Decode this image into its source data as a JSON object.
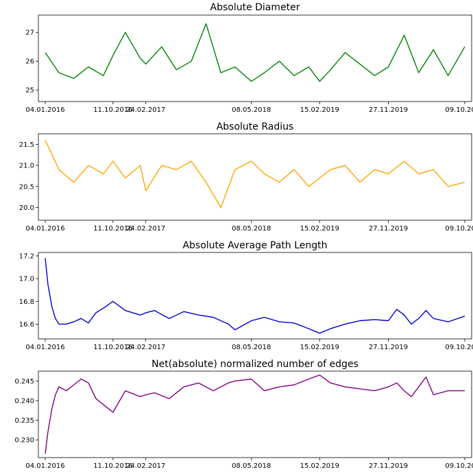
{
  "chart_data": [
    {
      "type": "line",
      "title": "Absolute Diameter",
      "xlabel": "",
      "ylabel": "",
      "x_ticks": [
        "04.01.2016",
        "11.10.2016",
        "24.02.2017",
        "08.05.2018",
        "15.02.2019",
        "27.11.2019",
        "09.10.2020"
      ],
      "xlim": [
        "04.01.2016",
        "09.10.2020"
      ],
      "y_ticks": [
        "25",
        "26",
        "27"
      ],
      "ylim": [
        24.6,
        27.6
      ],
      "grid": false,
      "color": "#008000",
      "series": [
        {
          "x": [
            "04.01.2016",
            "01.03.2016",
            "01.05.2016",
            "01.07.2016",
            "01.09.2016",
            "11.10.2016",
            "01.12.2016",
            "01.02.2017",
            "24.02.2017",
            "01.05.2017",
            "01.07.2017",
            "01.09.2017",
            "01.11.2017",
            "01.01.2018",
            "01.03.2018",
            "08.05.2018",
            "01.07.2018",
            "01.09.2018",
            "01.11.2018",
            "01.01.2019",
            "15.02.2019",
            "01.04.2019",
            "01.06.2019",
            "01.08.2019",
            "01.10.2019",
            "27.11.2019",
            "01.02.2020",
            "01.04.2020",
            "01.06.2020",
            "01.08.2020",
            "09.10.2020"
          ],
          "values": [
            26.3,
            25.6,
            25.4,
            25.8,
            25.5,
            26.2,
            27.0,
            26.1,
            25.9,
            26.5,
            25.7,
            26.0,
            27.3,
            25.6,
            25.8,
            25.3,
            25.6,
            26.0,
            25.5,
            25.8,
            25.3,
            25.7,
            26.3,
            25.9,
            25.5,
            25.8,
            26.9,
            25.6,
            26.4,
            25.5,
            26.5
          ]
        }
      ]
    },
    {
      "type": "line",
      "title": "Absolute Radius",
      "xlabel": "",
      "ylabel": "",
      "x_ticks": [
        "04.01.2016",
        "11.10.2016",
        "24.02.2017",
        "08.05.2018",
        "15.02.2019",
        "27.11.2019",
        "09.10.2020"
      ],
      "xlim": [
        "04.01.2016",
        "09.10.2020"
      ],
      "y_ticks": [
        "20.0",
        "20.5",
        "21.0",
        "21.5"
      ],
      "ylim": [
        19.7,
        21.75
      ],
      "grid": false,
      "color": "#FFA500",
      "series": [
        {
          "x": [
            "04.01.2016",
            "01.03.2016",
            "01.05.2016",
            "01.07.2016",
            "01.09.2016",
            "11.10.2016",
            "01.12.2016",
            "01.02.2017",
            "24.02.2017",
            "01.05.2017",
            "01.07.2017",
            "01.09.2017",
            "01.11.2017",
            "01.01.2018",
            "01.03.2018",
            "08.05.2018",
            "01.07.2018",
            "01.09.2018",
            "01.11.2018",
            "01.01.2019",
            "15.02.2019",
            "01.04.2019",
            "01.06.2019",
            "01.08.2019",
            "01.10.2019",
            "27.11.2019",
            "01.02.2020",
            "01.04.2020",
            "01.06.2020",
            "01.08.2020",
            "09.10.2020"
          ],
          "values": [
            21.6,
            20.9,
            20.6,
            21.0,
            20.8,
            21.1,
            20.7,
            21.0,
            20.4,
            21.0,
            20.9,
            21.1,
            20.6,
            20.0,
            20.9,
            21.1,
            20.8,
            20.6,
            20.9,
            20.5,
            20.7,
            20.9,
            21.0,
            20.6,
            20.9,
            20.8,
            21.1,
            20.8,
            20.9,
            20.5,
            20.6
          ]
        }
      ]
    },
    {
      "type": "line",
      "title": "Absolute Average Path Length",
      "xlabel": "",
      "ylabel": "",
      "x_ticks": [
        "04.01.2016",
        "11.10.2016",
        "24.02.2017",
        "08.05.2018",
        "15.02.2019",
        "27.11.2019",
        "09.10.2020"
      ],
      "xlim": [
        "04.01.2016",
        "09.10.2020"
      ],
      "y_ticks": [
        "16.6",
        "16.8",
        "17.0",
        "17.2"
      ],
      "ylim": [
        16.47,
        17.23
      ],
      "grid": false,
      "color": "#0000CD",
      "series": [
        {
          "x": [
            "04.01.2016",
            "15.01.2016",
            "01.02.2016",
            "15.02.2016",
            "01.03.2016",
            "01.04.2016",
            "01.05.2016",
            "01.06.2016",
            "01.07.2016",
            "01.08.2016",
            "01.09.2016",
            "11.10.2016",
            "01.12.2016",
            "01.02.2017",
            "24.02.2017",
            "01.04.2017",
            "01.06.2017",
            "01.08.2017",
            "01.10.2017",
            "01.12.2017",
            "01.02.2018",
            "01.03.2018",
            "08.05.2018",
            "01.07.2018",
            "01.09.2018",
            "01.11.2018",
            "01.01.2019",
            "15.02.2019",
            "01.04.2019",
            "01.06.2019",
            "01.08.2019",
            "01.10.2019",
            "27.11.2019",
            "01.01.2020",
            "01.02.2020",
            "01.03.2020",
            "01.04.2020",
            "01.05.2020",
            "01.06.2020",
            "01.08.2020",
            "09.10.2020"
          ],
          "values": [
            17.18,
            16.95,
            16.75,
            16.65,
            16.6,
            16.6,
            16.62,
            16.65,
            16.61,
            16.7,
            16.74,
            16.8,
            16.72,
            16.68,
            16.7,
            16.72,
            16.65,
            16.71,
            16.68,
            16.66,
            16.6,
            16.55,
            16.63,
            16.66,
            16.62,
            16.61,
            16.56,
            16.52,
            16.56,
            16.6,
            16.63,
            16.64,
            16.63,
            16.73,
            16.68,
            16.6,
            16.65,
            16.72,
            16.65,
            16.62,
            16.67
          ]
        }
      ]
    },
    {
      "type": "line",
      "title": "Net(absolute) normalized number of edges",
      "xlabel": "",
      "ylabel": "",
      "x_ticks": [
        "04.01.2016",
        "11.10.2016",
        "24.02.2017",
        "08.05.2018",
        "15.02.2019",
        "27.11.2019",
        "09.10.2020"
      ],
      "xlim": [
        "04.01.2016",
        "09.10.2020"
      ],
      "y_ticks": [
        "0.230",
        "0.235",
        "0.240",
        "0.245"
      ],
      "ylim": [
        0.2255,
        0.2475
      ],
      "grid": false,
      "color": "#800080",
      "series": [
        {
          "x": [
            "04.01.2016",
            "15.01.2016",
            "01.02.2016",
            "15.02.2016",
            "01.03.2016",
            "01.04.2016",
            "01.05.2016",
            "01.06.2016",
            "01.07.2016",
            "01.08.2016",
            "01.09.2016",
            "11.10.2016",
            "01.12.2016",
            "01.02.2017",
            "24.02.2017",
            "01.04.2017",
            "01.06.2017",
            "01.08.2017",
            "01.10.2017",
            "01.12.2017",
            "01.02.2018",
            "01.03.2018",
            "08.05.2018",
            "01.07.2018",
            "01.09.2018",
            "01.11.2018",
            "01.01.2019",
            "15.02.2019",
            "01.04.2019",
            "01.06.2019",
            "01.08.2019",
            "01.10.2019",
            "27.11.2019",
            "01.01.2020",
            "01.02.2020",
            "01.03.2020",
            "01.04.2020",
            "01.05.2020",
            "01.06.2020",
            "01.08.2020",
            "09.10.2020"
          ],
          "values": [
            0.2265,
            0.232,
            0.238,
            0.2415,
            0.2435,
            0.2425,
            0.244,
            0.2455,
            0.2445,
            0.2405,
            0.239,
            0.237,
            0.2425,
            0.241,
            0.2415,
            0.242,
            0.2405,
            0.2435,
            0.2445,
            0.2425,
            0.2445,
            0.245,
            0.2455,
            0.2425,
            0.2435,
            0.244,
            0.2455,
            0.2465,
            0.2445,
            0.2435,
            0.243,
            0.2425,
            0.2435,
            0.2445,
            0.2425,
            0.241,
            0.2435,
            0.246,
            0.2415,
            0.2425,
            0.2425
          ]
        }
      ]
    }
  ]
}
